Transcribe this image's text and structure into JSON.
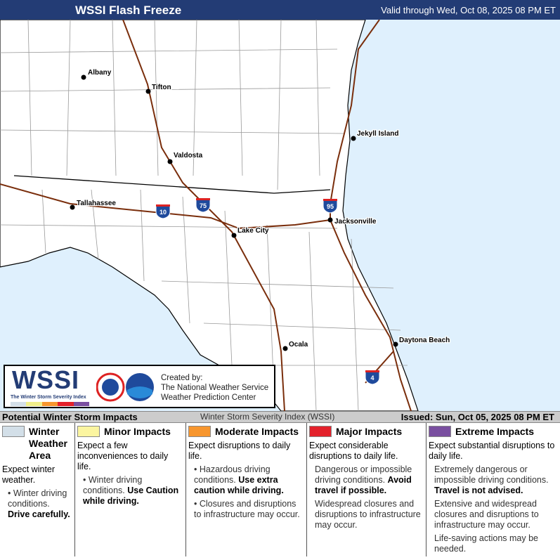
{
  "header": {
    "title": "WSSI Flash Freeze",
    "valid": "Valid through Wed, Oct 08, 2025 08 PM ET"
  },
  "colors": {
    "header": "#233c75",
    "ocean": "#dff0fd",
    "land": "#ffffff",
    "roads": "#7a2e0c"
  },
  "map": {
    "cities": [
      {
        "name": "Albany"
      },
      {
        "name": "Tifton"
      },
      {
        "name": "Valdosta"
      },
      {
        "name": "Tallahassee"
      },
      {
        "name": "Jekyll Island"
      },
      {
        "name": "Jacksonville"
      },
      {
        "name": "Lake City"
      },
      {
        "name": "Ocala"
      },
      {
        "name": "Daytona Beach"
      }
    ],
    "interstates": [
      "10",
      "75",
      "95",
      "4"
    ]
  },
  "logo": {
    "wordmark": "WSSI",
    "subtitle": "The Winter Storm Severity Index",
    "created": [
      "Created by:",
      "The National Weather Service",
      "Weather Prediction Center"
    ]
  },
  "impacts_bar": {
    "left": "Potential Winter Storm Impacts",
    "center": "Winter Storm Severity Index (WSSI)",
    "right": "Issued: Sun, Oct 05, 2025 08 PM ET"
  },
  "legend": [
    {
      "label": "Winter Weather Area",
      "color": "#d3dfe8",
      "lead": "Expect winter weather.",
      "details": [
        {
          "text": "Winter driving conditions. ",
          "bold": "Drive carefully."
        }
      ]
    },
    {
      "label": "Minor Impacts",
      "color": "#fbf5a0",
      "lead": "Expect a few inconveniences to daily life.",
      "details": [
        {
          "text": "Winter driving conditions. ",
          "bold": "Use Caution while driving."
        }
      ]
    },
    {
      "label": "Moderate Impacts",
      "color": "#f7962e",
      "lead": "Expect disruptions to daily life.",
      "details": [
        {
          "text": "Hazardous driving conditions. ",
          "bold": "Use extra caution while driving."
        },
        {
          "text": "Closures and disruptions to infrastructure may occur.",
          "bold": ""
        }
      ]
    },
    {
      "label": "Major Impacts",
      "color": "#e3212b",
      "lead": "Expect considerable disruptions to daily life.",
      "details": [
        {
          "text": "Dangerous or impossible driving conditions. ",
          "bold": "Avoid travel if possible."
        },
        {
          "text": "Widespread closures and disruptions to infrastructure may occur.",
          "bold": ""
        }
      ]
    },
    {
      "label": "Extreme Impacts",
      "color": "#7a4fa0",
      "lead": "Expect substantial disruptions to daily life.",
      "details": [
        {
          "text": "Extremely dangerous or impossible driving conditions. ",
          "bold": "Travel is not advised."
        },
        {
          "text": "Extensive and widespread closures and disruptions to infrastructure may occur.",
          "bold": ""
        },
        {
          "text": "Life-saving actions may be needed.",
          "bold": ""
        }
      ]
    }
  ]
}
